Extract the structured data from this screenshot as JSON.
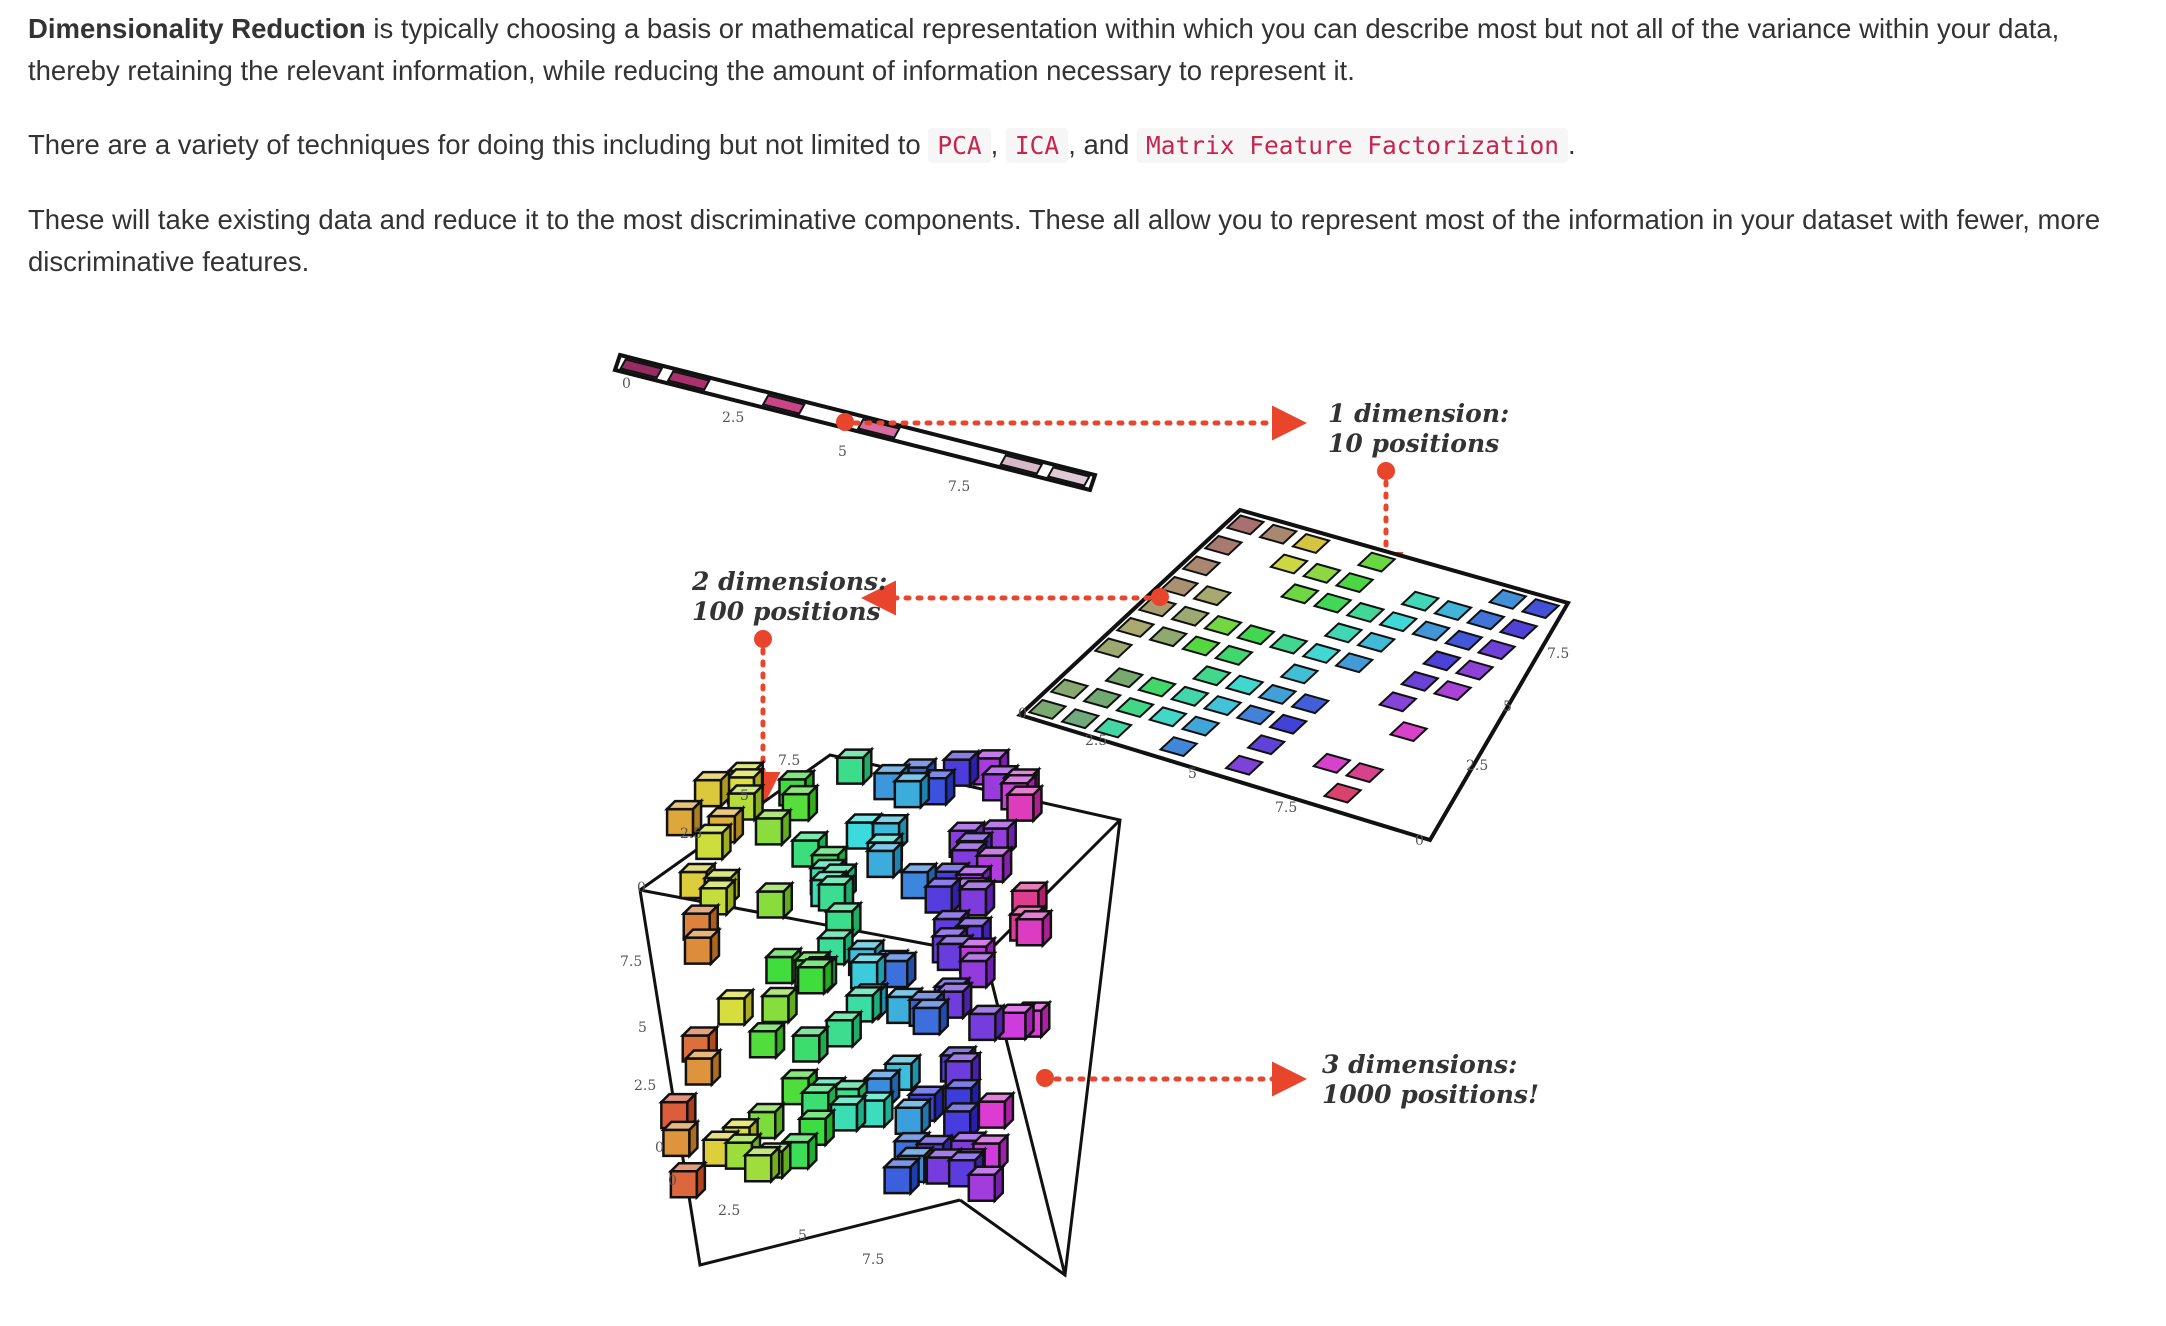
{
  "paragraphs": {
    "p1": {
      "term": "Dimensionality Reduction",
      "text": " is typically choosing a basis or mathematical representation within which you can describe most but not all of the variance within your data, thereby retaining the relevant information, while reducing the amount of information necessary to represent it."
    },
    "p2": {
      "intro": "There are a variety of techniques for doing this including but not limited to ",
      "sep1": ", ",
      "sep2": ", and ",
      "end": ".",
      "techniques": [
        "PCA",
        "ICA",
        "Matrix Feature Factorization"
      ]
    },
    "p3": {
      "text": "These will take existing data and reduce it to the most discriminative components. These all allow you to represent most of the information in your dataset with fewer, more discriminative features."
    }
  },
  "figure": {
    "labels": {
      "one_dim_line1": "1 dimension:",
      "one_dim_line2": "10 positions",
      "two_dim_line1": "2 dimensions:",
      "two_dim_line2": "100 positions",
      "three_dim_line1": "3 dimensions:",
      "three_dim_line2": "1000 positions!"
    },
    "strip_ticks": [
      "0",
      "2.5",
      "5",
      "7.5"
    ],
    "plane_ticks_a": [
      "0",
      "2.5",
      "5",
      "7.5"
    ],
    "plane_ticks_b": [
      "0",
      "2.5",
      "5",
      "7.5"
    ],
    "cube_ticks_vertical": [
      "7.5",
      "5",
      "2.5",
      "0"
    ],
    "cube_ticks_bottom": [
      "0",
      "2.5",
      "5",
      "7.5"
    ],
    "cube_ticks_top": [
      "0",
      "2.5",
      "5",
      "7.5"
    ],
    "colors": {
      "arrow": "#e8452c",
      "text": "#333333",
      "code": "#c7254e",
      "code_bg": "#f6f6f6"
    }
  }
}
